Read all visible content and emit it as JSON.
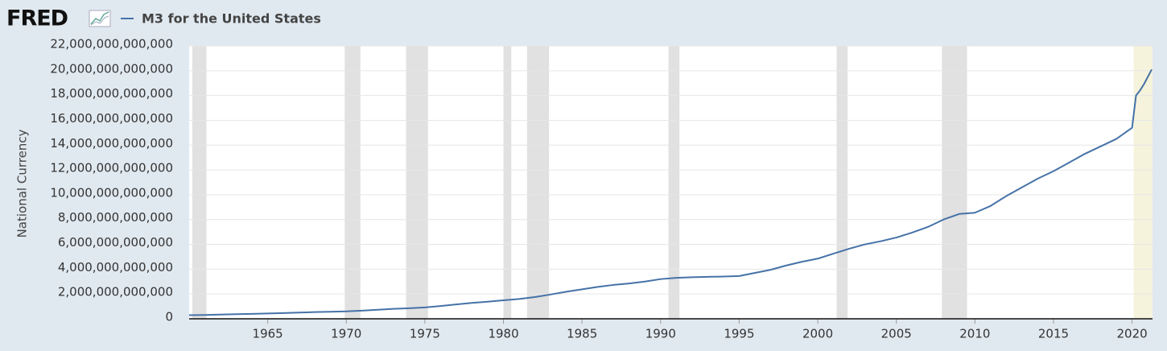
{
  "chart_data": {
    "type": "line",
    "logo": "FRED",
    "y_label": "National Currency",
    "x": [
      1960,
      1961,
      1962,
      1963,
      1964,
      1965,
      1966,
      1967,
      1968,
      1969,
      1970,
      1971,
      1972,
      1973,
      1974,
      1975,
      1976,
      1977,
      1978,
      1979,
      1980,
      1981,
      1982,
      1983,
      1984,
      1985,
      1986,
      1987,
      1988,
      1989,
      1990,
      1991,
      1992,
      1993,
      1994,
      1995,
      1996,
      1997,
      1998,
      1999,
      2000,
      2001,
      2002,
      2003,
      2004,
      2005,
      2006,
      2007,
      2008,
      2009,
      2010,
      2011,
      2012,
      2013,
      2014,
      2015,
      2016,
      2017,
      2018,
      2019,
      2020,
      2020.25,
      2020.5,
      2020.75,
      2021,
      2021.25
    ],
    "series": [
      {
        "name": "M3 for the United States",
        "color": "#4572a7",
        "values": [
          290000000000,
          310000000000,
          340000000000,
          370000000000,
          400000000000,
          430000000000,
          460000000000,
          500000000000,
          540000000000,
          570000000000,
          600000000000,
          660000000000,
          730000000000,
          800000000000,
          850000000000,
          920000000000,
          1030000000000,
          1160000000000,
          1280000000000,
          1380000000000,
          1490000000000,
          1600000000000,
          1750000000000,
          1960000000000,
          2180000000000,
          2380000000000,
          2570000000000,
          2730000000000,
          2850000000000,
          3000000000000,
          3200000000000,
          3300000000000,
          3350000000000,
          3380000000000,
          3410000000000,
          3450000000000,
          3700000000000,
          3950000000000,
          4300000000000,
          4600000000000,
          4850000000000,
          5250000000000,
          5650000000000,
          6000000000000,
          6250000000000,
          6550000000000,
          6950000000000,
          7400000000000,
          8000000000000,
          8450000000000,
          8550000000000,
          9100000000000,
          9900000000000,
          10600000000000,
          11300000000000,
          11900000000000,
          12600000000000,
          13300000000000,
          13900000000000,
          14500000000000,
          15400000000000,
          18000000000000,
          18400000000000,
          18900000000000,
          19500000000000,
          20100000000000
        ]
      }
    ],
    "xlim": [
      1960,
      2021.3
    ],
    "xticks": [
      1965,
      1970,
      1975,
      1980,
      1985,
      1990,
      1995,
      2000,
      2005,
      2010,
      2015,
      2020
    ],
    "ylim": [
      0,
      22000000000000
    ],
    "yticks": [
      0,
      {
        "value": 2000000000000,
        "label": "2,000,000,000,000"
      },
      {
        "value": 4000000000000,
        "label": "4,000,000,000,000"
      },
      {
        "value": 6000000000000,
        "label": "6,000,000,000,000"
      },
      {
        "value": 8000000000000,
        "label": "8,000,000,000,000"
      },
      {
        "value": 10000000000000,
        "label": "10,000,000,000,000"
      },
      {
        "value": 12000000000000,
        "label": "12,000,000,000,000"
      },
      {
        "value": 14000000000000,
        "label": "14,000,000,000,000"
      },
      {
        "value": 16000000000000,
        "label": "16,000,000,000,000"
      },
      {
        "value": 18000000000000,
        "label": "18,000,000,000,000"
      },
      {
        "value": 20000000000000,
        "label": "20,000,000,000,000"
      },
      {
        "value": 22000000000000,
        "label": "22,000,000,000,000"
      }
    ],
    "grid": true,
    "recessions": [
      [
        1960.2,
        1961.1
      ],
      [
        1969.9,
        1970.9
      ],
      [
        1973.8,
        1975.2
      ],
      [
        1980.0,
        1980.5
      ],
      [
        1981.5,
        1982.9
      ],
      [
        1990.5,
        1991.2
      ],
      [
        2001.2,
        2001.9
      ],
      [
        2007.9,
        2009.5
      ]
    ],
    "recession_color": "#e1e1e1",
    "highlight": [
      2020.1,
      2021.3
    ],
    "highlight_color": "#f5f3dc"
  }
}
